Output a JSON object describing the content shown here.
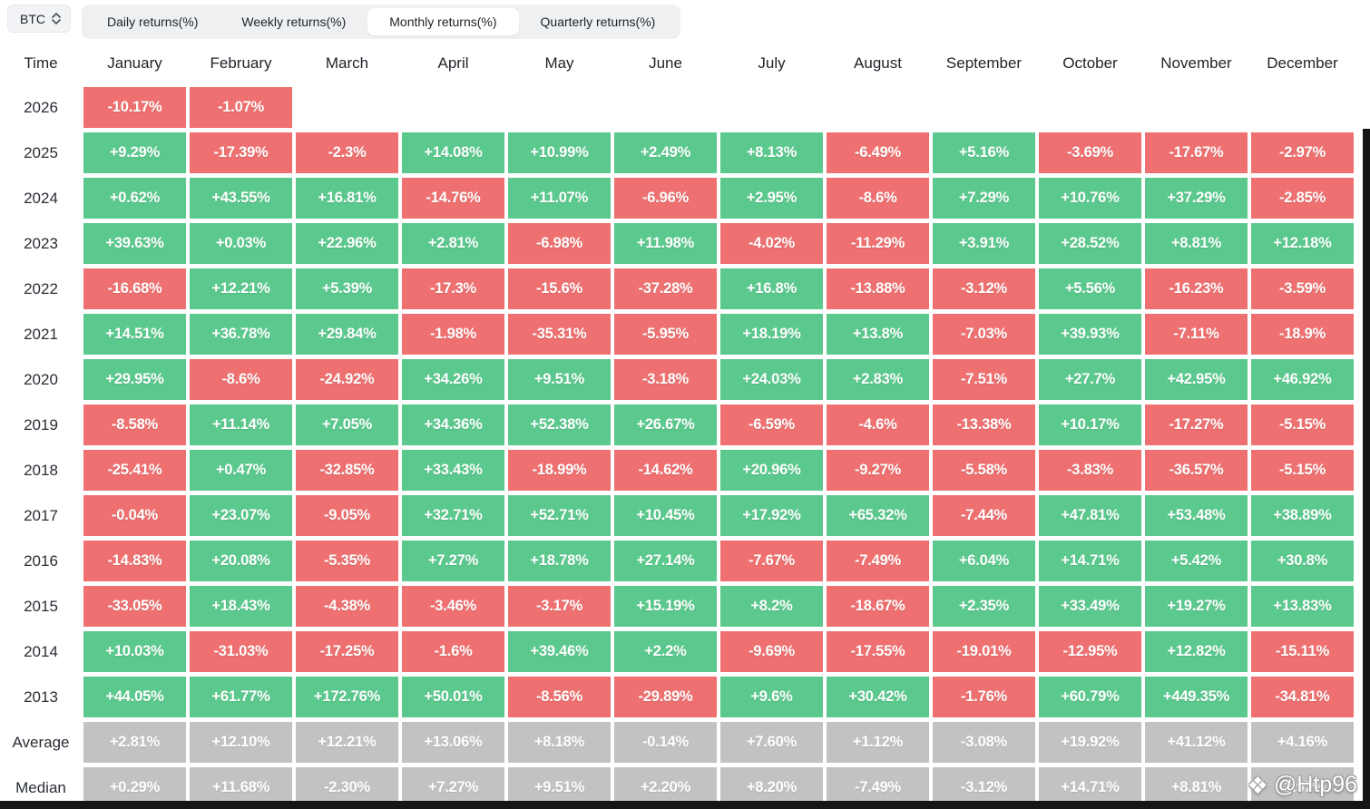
{
  "toolbar": {
    "asset_selector": {
      "value": "BTC"
    },
    "tabs": [
      {
        "label": "Daily returns(%)",
        "active": false
      },
      {
        "label": "Weekly returns(%)",
        "active": false
      },
      {
        "label": "Monthly returns(%)",
        "active": true
      },
      {
        "label": "Quarterly returns(%)",
        "active": false
      }
    ]
  },
  "table": {
    "time_header": "Time",
    "months": [
      "January",
      "February",
      "March",
      "April",
      "May",
      "June",
      "July",
      "August",
      "September",
      "October",
      "November",
      "December"
    ],
    "rows": [
      {
        "label": "2026",
        "type": "data",
        "values": [
          "-10.17%",
          "-1.07%",
          "",
          "",
          "",
          "",
          "",
          "",
          "",
          "",
          "",
          ""
        ]
      },
      {
        "label": "2025",
        "type": "data",
        "values": [
          "+9.29%",
          "-17.39%",
          "-2.3%",
          "+14.08%",
          "+10.99%",
          "+2.49%",
          "+8.13%",
          "-6.49%",
          "+5.16%",
          "-3.69%",
          "-17.67%",
          "-2.97%"
        ]
      },
      {
        "label": "2024",
        "type": "data",
        "values": [
          "+0.62%",
          "+43.55%",
          "+16.81%",
          "-14.76%",
          "+11.07%",
          "-6.96%",
          "+2.95%",
          "-8.6%",
          "+7.29%",
          "+10.76%",
          "+37.29%",
          "-2.85%"
        ]
      },
      {
        "label": "2023",
        "type": "data",
        "values": [
          "+39.63%",
          "+0.03%",
          "+22.96%",
          "+2.81%",
          "-6.98%",
          "+11.98%",
          "-4.02%",
          "-11.29%",
          "+3.91%",
          "+28.52%",
          "+8.81%",
          "+12.18%"
        ]
      },
      {
        "label": "2022",
        "type": "data",
        "values": [
          "-16.68%",
          "+12.21%",
          "+5.39%",
          "-17.3%",
          "-15.6%",
          "-37.28%",
          "+16.8%",
          "-13.88%",
          "-3.12%",
          "+5.56%",
          "-16.23%",
          "-3.59%"
        ]
      },
      {
        "label": "2021",
        "type": "data",
        "values": [
          "+14.51%",
          "+36.78%",
          "+29.84%",
          "-1.98%",
          "-35.31%",
          "-5.95%",
          "+18.19%",
          "+13.8%",
          "-7.03%",
          "+39.93%",
          "-7.11%",
          "-18.9%"
        ]
      },
      {
        "label": "2020",
        "type": "data",
        "values": [
          "+29.95%",
          "-8.6%",
          "-24.92%",
          "+34.26%",
          "+9.51%",
          "-3.18%",
          "+24.03%",
          "+2.83%",
          "-7.51%",
          "+27.7%",
          "+42.95%",
          "+46.92%"
        ]
      },
      {
        "label": "2019",
        "type": "data",
        "values": [
          "-8.58%",
          "+11.14%",
          "+7.05%",
          "+34.36%",
          "+52.38%",
          "+26.67%",
          "-6.59%",
          "-4.6%",
          "-13.38%",
          "+10.17%",
          "-17.27%",
          "-5.15%"
        ]
      },
      {
        "label": "2018",
        "type": "data",
        "values": [
          "-25.41%",
          "+0.47%",
          "-32.85%",
          "+33.43%",
          "-18.99%",
          "-14.62%",
          "+20.96%",
          "-9.27%",
          "-5.58%",
          "-3.83%",
          "-36.57%",
          "-5.15%"
        ]
      },
      {
        "label": "2017",
        "type": "data",
        "values": [
          "-0.04%",
          "+23.07%",
          "-9.05%",
          "+32.71%",
          "+52.71%",
          "+10.45%",
          "+17.92%",
          "+65.32%",
          "-7.44%",
          "+47.81%",
          "+53.48%",
          "+38.89%"
        ]
      },
      {
        "label": "2016",
        "type": "data",
        "values": [
          "-14.83%",
          "+20.08%",
          "-5.35%",
          "+7.27%",
          "+18.78%",
          "+27.14%",
          "-7.67%",
          "-7.49%",
          "+6.04%",
          "+14.71%",
          "+5.42%",
          "+30.8%"
        ]
      },
      {
        "label": "2015",
        "type": "data",
        "values": [
          "-33.05%",
          "+18.43%",
          "-4.38%",
          "-3.46%",
          "-3.17%",
          "+15.19%",
          "+8.2%",
          "-18.67%",
          "+2.35%",
          "+33.49%",
          "+19.27%",
          "+13.83%"
        ]
      },
      {
        "label": "2014",
        "type": "data",
        "values": [
          "+10.03%",
          "-31.03%",
          "-17.25%",
          "-1.6%",
          "+39.46%",
          "+2.2%",
          "-9.69%",
          "-17.55%",
          "-19.01%",
          "-12.95%",
          "+12.82%",
          "-15.11%"
        ]
      },
      {
        "label": "2013",
        "type": "data",
        "values": [
          "+44.05%",
          "+61.77%",
          "+172.76%",
          "+50.01%",
          "-8.56%",
          "-29.89%",
          "+9.6%",
          "+30.42%",
          "-1.76%",
          "+60.79%",
          "+449.35%",
          "-34.81%"
        ]
      },
      {
        "label": "Average",
        "type": "summary",
        "values": [
          "+2.81%",
          "+12.10%",
          "+12.21%",
          "+13.06%",
          "+8.18%",
          "-0.14%",
          "+7.60%",
          "+1.12%",
          "-3.08%",
          "+19.92%",
          "+41.12%",
          "+4.16%"
        ]
      },
      {
        "label": "Median",
        "type": "summary",
        "values": [
          "+0.29%",
          "+11.68%",
          "-2.30%",
          "+7.27%",
          "+9.51%",
          "+2.20%",
          "+8.20%",
          "-7.49%",
          "-3.12%",
          "+14.71%",
          "+8.81%",
          "-2.97%"
        ]
      }
    ]
  },
  "watermark": {
    "icon": "binance-logo-icon",
    "icon_glyph": "❖",
    "text": "@Htp96"
  },
  "colors": {
    "positive": "#5bc98d",
    "negative": "#ee7070",
    "summary": "#c2c2c2",
    "tabbar_bg": "#eef0f2",
    "text_dark": "#1e2329"
  }
}
